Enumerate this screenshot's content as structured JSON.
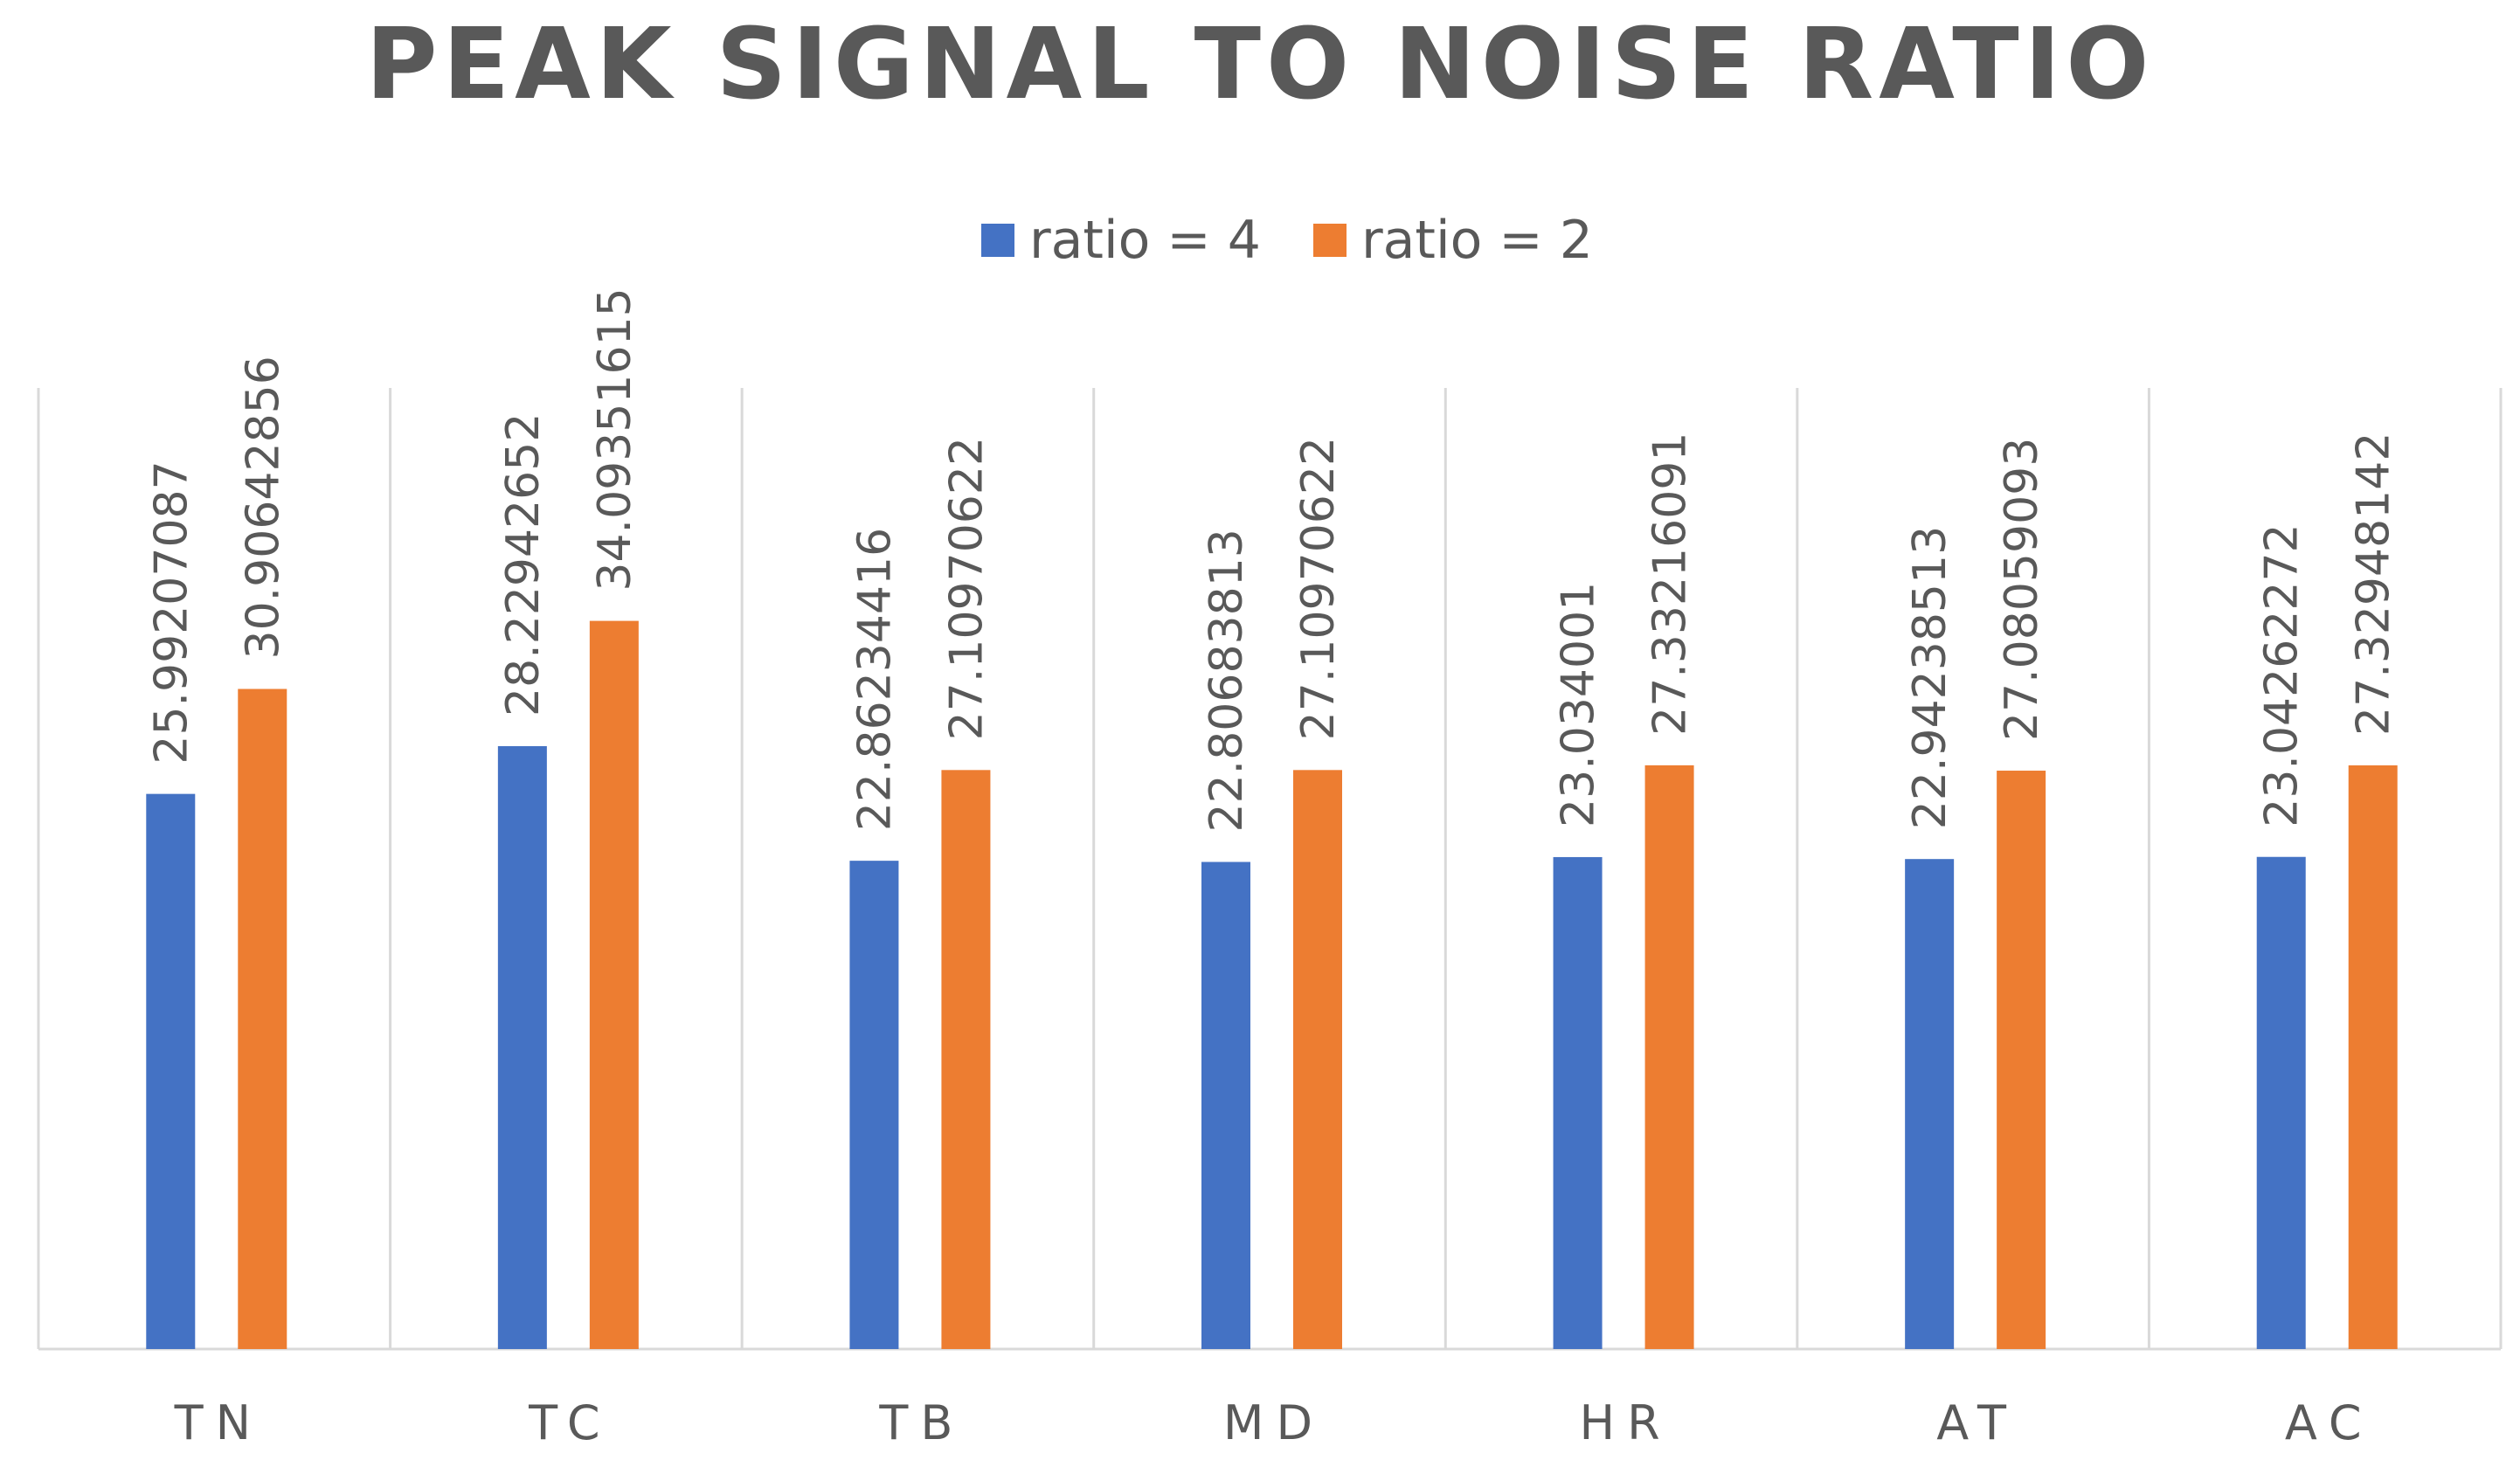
{
  "chart_data": {
    "type": "bar",
    "title": "PEAK SIGNAL TO NOISE RATIO",
    "categories": [
      "TN",
      "TC",
      "TB",
      "MD",
      "HR",
      "AT",
      "AC"
    ],
    "series": [
      {
        "name": "ratio = 4",
        "color": "#4472C4",
        "values": [
          25.99207087,
          28.22942652,
          22.86234416,
          22.80683813,
          23.034001,
          22.94238513,
          23.04262272
        ],
        "labels": [
          "25.99207087",
          "28.22942652",
          "22.86234416",
          "22.80683813",
          "23.034001",
          "22.94238513",
          "23.04262272"
        ]
      },
      {
        "name": "ratio = 2",
        "color": "#ED7D31",
        "values": [
          30.90642856,
          34.09351615,
          27.10970622,
          27.10970622,
          27.33216091,
          27.08059093,
          27.32948142
        ],
        "labels": [
          "30.90642856",
          "34.09351615",
          "27.10970622",
          "27.10970622",
          "27.33216091",
          "27.08059093",
          "27.32948142"
        ]
      }
    ],
    "xlabel": "",
    "ylabel": "",
    "ylim": [
      0,
      45
    ],
    "grid": false,
    "legend": "top-center"
  }
}
